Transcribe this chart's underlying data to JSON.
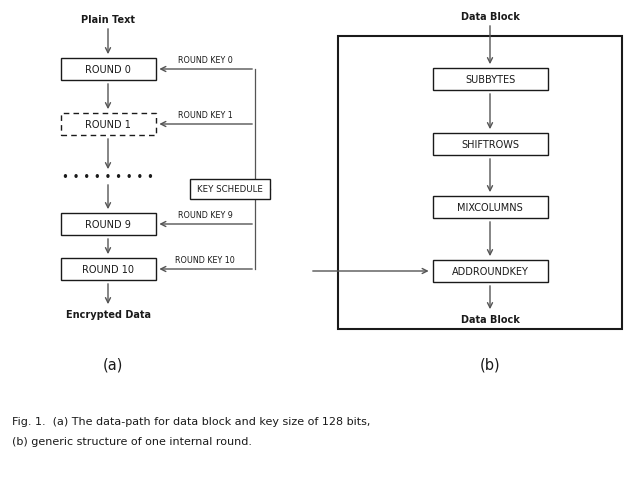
{
  "bg_color": "#ffffff",
  "fig_width": 6.4,
  "fig_height": 4.89,
  "dpi": 100,
  "caption_line1": "Fig. 1.  (a) The data-path for data block and key size of 128 bits,",
  "caption_line2": "(b) generic structure of one internal round.",
  "label_a": "(a)",
  "label_b": "(b)",
  "left_plain_text": "Plain Text",
  "left_encrypted": "Encrypted Data",
  "left_rounds": [
    "ROUND 0",
    "ROUND 1",
    "ROUND 9",
    "ROUND 10"
  ],
  "left_round_keys": [
    "ROUND KEY 0",
    "ROUND KEY 1",
    "ROUND KEY 9",
    "ROUND KEY 10"
  ],
  "key_schedule": "KEY SCHEDULE",
  "right_data_block_top": "Data Block",
  "right_data_block_bottom": "Data Block",
  "right_ops": [
    "SUBBYTES",
    "SHIFTROWS",
    "MIXCOLUMNS",
    "ADDROUNDKEY"
  ],
  "box_facecolor": "#ffffff",
  "box_edgecolor": "#1a1a1a",
  "text_color": "#1a1a1a",
  "arrow_color": "#555555",
  "font_size_box": 7.0,
  "font_size_label": 7.0,
  "font_size_caption": 8.0,
  "font_size_ab": 10.5
}
